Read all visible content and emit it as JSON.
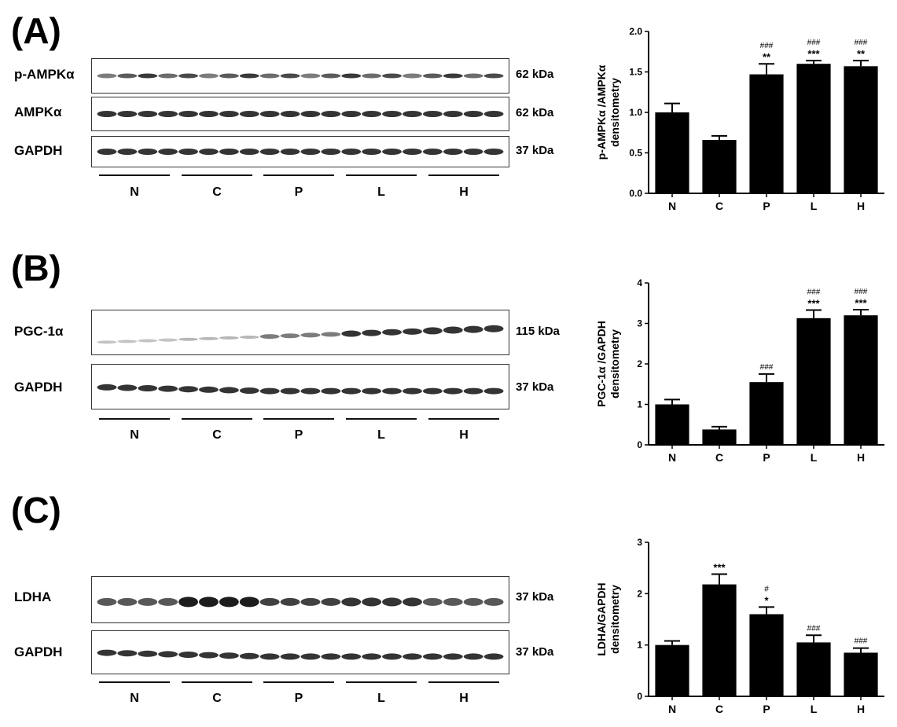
{
  "panels": [
    {
      "label": "(A)",
      "groups": [
        "N",
        "C",
        "P",
        "L",
        "H"
      ],
      "blots": [
        {
          "name": "p-AMPKα",
          "kda": "62 kDa"
        },
        {
          "name": "AMPKα",
          "kda": "62 kDa"
        },
        {
          "name": "GAPDH",
          "kda": "37 kDa"
        }
      ]
    },
    {
      "label": "(B)",
      "groups": [
        "N",
        "C",
        "P",
        "L",
        "H"
      ],
      "blots": [
        {
          "name": "PGC-1α",
          "kda": "115 kDa"
        },
        {
          "name": "GAPDH",
          "kda": "37 kDa"
        }
      ]
    },
    {
      "label": "(C)",
      "groups": [
        "N",
        "C",
        "P",
        "L",
        "H"
      ],
      "blots": [
        {
          "name": "LDHA",
          "kda": "37 kDa"
        },
        {
          "name": "GAPDH",
          "kda": "37 kDa"
        }
      ]
    }
  ],
  "chart_data": [
    {
      "type": "bar",
      "categories": [
        "N",
        "C",
        "P",
        "L",
        "H"
      ],
      "values": [
        1.0,
        0.66,
        1.47,
        1.6,
        1.57
      ],
      "errors": [
        0.11,
        0.05,
        0.13,
        0.04,
        0.07
      ],
      "annotations_star": [
        "",
        "",
        "**",
        "***",
        "**"
      ],
      "annotations_hash": [
        "",
        "",
        "###",
        "###",
        "###"
      ],
      "title": "",
      "ylabel": "p-AMPKα /AMPKα densitometry",
      "ylabel_lines": [
        "p-AMPKα /AMPKα",
        "densitometry"
      ],
      "ylim": [
        0,
        2.0
      ],
      "yticks": [
        "0.0",
        "0.5",
        "1.0",
        "1.5",
        "2.0"
      ],
      "bar_color": "#000000"
    },
    {
      "type": "bar",
      "categories": [
        "N",
        "C",
        "P",
        "L",
        "H"
      ],
      "values": [
        1.0,
        0.38,
        1.55,
        3.13,
        3.2
      ],
      "errors": [
        0.12,
        0.07,
        0.2,
        0.2,
        0.14
      ],
      "annotations_star": [
        "",
        "",
        "",
        "***",
        "***"
      ],
      "annotations_hash": [
        "",
        "",
        "###",
        "###",
        "###"
      ],
      "title": "",
      "ylabel": "PGC-1α /GAPDH densitometry",
      "ylabel_lines": [
        "PGC-1α /GAPDH",
        "densitometry"
      ],
      "ylim": [
        0,
        4
      ],
      "yticks": [
        "0",
        "1",
        "2",
        "3",
        "4"
      ],
      "bar_color": "#000000"
    },
    {
      "type": "bar",
      "categories": [
        "N",
        "C",
        "P",
        "L",
        "H"
      ],
      "values": [
        1.0,
        2.18,
        1.6,
        1.05,
        0.85
      ],
      "errors": [
        0.08,
        0.2,
        0.14,
        0.14,
        0.09
      ],
      "annotations_star": [
        "",
        "***",
        "*",
        "",
        ""
      ],
      "annotations_hash": [
        "",
        "",
        "#",
        "###",
        "###"
      ],
      "title": "",
      "ylabel": "LDHA/GAPDH densitometry",
      "ylabel_lines": [
        "LDHA/GAPDH",
        "densitometry"
      ],
      "ylim": [
        0,
        3
      ],
      "yticks": [
        "0",
        "1",
        "2",
        "3"
      ],
      "bar_color": "#000000"
    }
  ]
}
